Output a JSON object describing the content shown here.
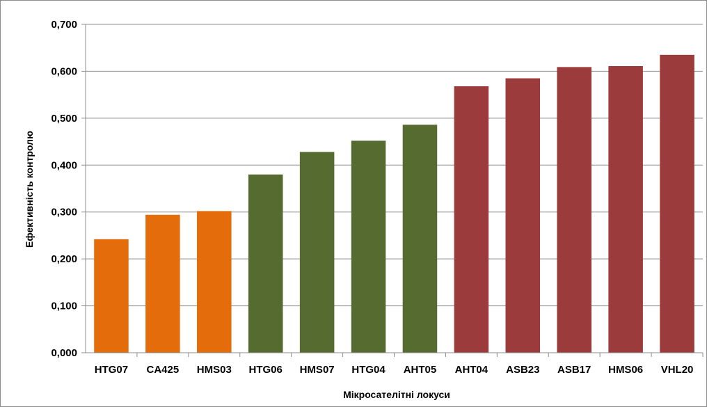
{
  "chart_data": {
    "type": "bar",
    "categories": [
      "HTG07",
      "CA425",
      "HMS03",
      "HTG06",
      "HMS07",
      "HTG04",
      "AHT05",
      "AHT04",
      "ASB23",
      "ASB17",
      "HMS06",
      "VHL20"
    ],
    "values": [
      0.242,
      0.294,
      0.302,
      0.38,
      0.428,
      0.452,
      0.486,
      0.568,
      0.585,
      0.609,
      0.611,
      0.635
    ],
    "bar_colors": [
      "#e46c0a",
      "#e46c0a",
      "#e46c0a",
      "#556b2f",
      "#556b2f",
      "#556b2f",
      "#556b2f",
      "#9c3b3b",
      "#9c3b3b",
      "#9c3b3b",
      "#9c3b3b",
      "#9c3b3b"
    ],
    "title": "",
    "xlabel": "Мікросателітні локуси",
    "ylabel": "Ефективність контролю",
    "ylim": [
      0,
      0.7
    ],
    "yticks": [
      0,
      0.1,
      0.2,
      0.3,
      0.4,
      0.5,
      0.6,
      0.7
    ],
    "ytick_labels": [
      "0,000",
      "0,100",
      "0,200",
      "0,300",
      "0,400",
      "0,500",
      "0,600",
      "0,700"
    ],
    "grid": true,
    "legend": "none"
  }
}
